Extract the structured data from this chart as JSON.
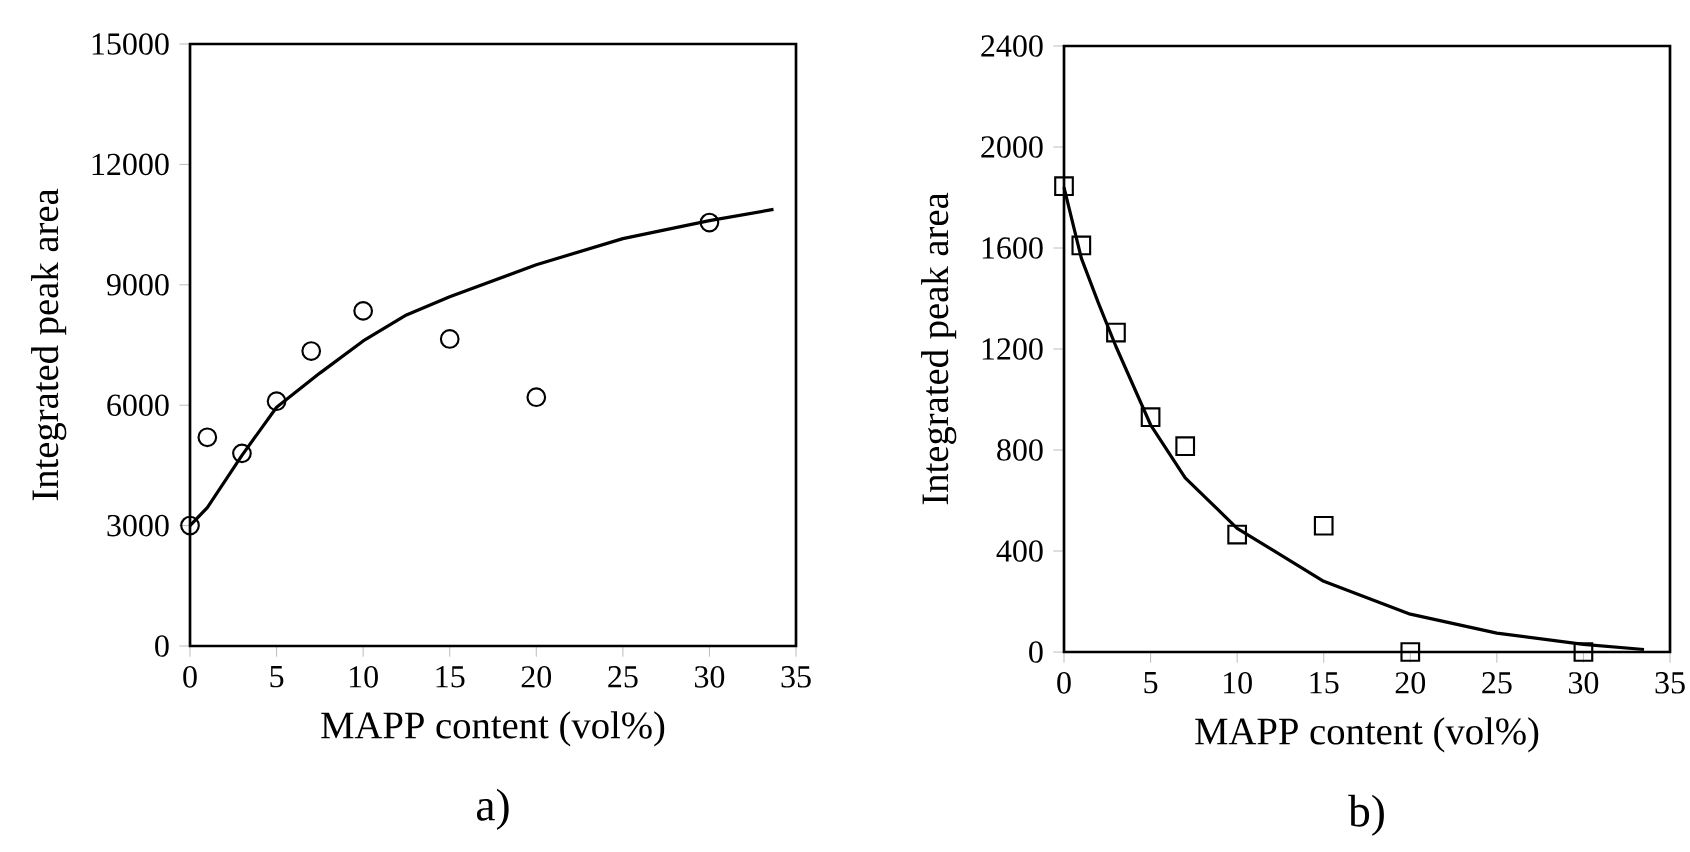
{
  "chart_data": [
    {
      "type": "scatter",
      "title": "a)",
      "xlabel": "MAPP content (vol%)",
      "ylabel": "Integrated peak area",
      "xlim": [
        0,
        35
      ],
      "ylim": [
        0,
        15000
      ],
      "xticks": [
        0,
        5,
        10,
        15,
        20,
        25,
        30,
        35
      ],
      "yticks": [
        0,
        3000,
        6000,
        9000,
        12000,
        15000
      ],
      "marker": "circle",
      "series": [
        {
          "color": "#000000",
          "x": [
            0,
            1,
            3,
            5,
            7,
            10,
            15,
            20,
            30
          ],
          "values": [
            3000,
            5200,
            4800,
            6100,
            7350,
            8350,
            7650,
            6200,
            10550
          ]
        },
        {
          "type": "line",
          "color": "#000000",
          "marker": "none",
          "x": [
            0,
            1,
            2,
            3,
            5,
            7.5,
            10,
            12.5,
            15,
            20,
            25,
            30,
            33.7
          ],
          "values": [
            3000,
            3450,
            4100,
            4750,
            5950,
            6800,
            7600,
            8250,
            8700,
            9500,
            10150,
            10600,
            10880
          ]
        }
      ]
    },
    {
      "type": "scatter",
      "title": "b)",
      "xlabel": "MAPP content (vol%)",
      "ylabel": "Integrated peak area",
      "xlim": [
        0,
        35
      ],
      "ylim": [
        0,
        2400
      ],
      "xticks": [
        0,
        5,
        10,
        15,
        20,
        25,
        30,
        35
      ],
      "yticks": [
        0,
        400,
        800,
        1200,
        1600,
        2000,
        2400
      ],
      "marker": "square",
      "series": [
        {
          "color": "#000000",
          "x": [
            0,
            1,
            3,
            5,
            7,
            10,
            15,
            20,
            30
          ],
          "values": [
            1845,
            1610,
            1265,
            930,
            815,
            465,
            500,
            0,
            0
          ]
        },
        {
          "type": "line",
          "color": "#000000",
          "marker": "none",
          "x": [
            0,
            1,
            2,
            3,
            5,
            7,
            10,
            15,
            20,
            25,
            30,
            33.5
          ],
          "values": [
            1840,
            1560,
            1380,
            1210,
            900,
            690,
            490,
            280,
            150,
            75,
            30,
            10
          ]
        }
      ]
    }
  ]
}
